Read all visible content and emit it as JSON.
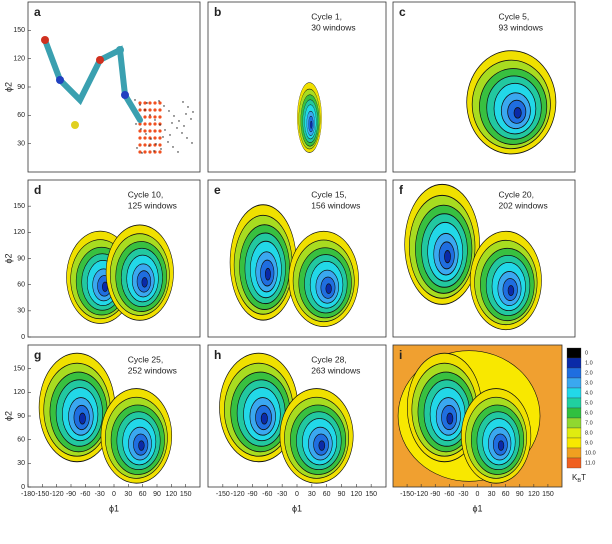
{
  "chart_data": [
    {
      "type": "contour",
      "label": "a",
      "xlim": [
        -180,
        180
      ],
      "ylim": [
        0,
        180
      ],
      "yticks": [
        30,
        60,
        90,
        120,
        150
      ],
      "ylabel": "ϕ2"
    },
    {
      "type": "contour",
      "label": "b",
      "annotation": [
        "Cycle 1,",
        "30 windows"
      ],
      "xlim": [
        -180,
        180
      ],
      "ylim": [
        0,
        180
      ]
    },
    {
      "type": "contour",
      "label": "c",
      "annotation": [
        "Cycle 5,",
        "93 windows"
      ],
      "xlim": [
        -180,
        180
      ],
      "ylim": [
        0,
        180
      ]
    },
    {
      "type": "contour",
      "label": "d",
      "annotation": [
        "Cycle 10,",
        "125 windows"
      ],
      "xlim": [
        -180,
        180
      ],
      "ylim": [
        0,
        180
      ],
      "yticks": [
        0,
        30,
        60,
        90,
        120,
        150
      ],
      "ylabel": "ϕ2"
    },
    {
      "type": "contour",
      "label": "e",
      "annotation": [
        "Cycle 15,",
        "156 windows"
      ],
      "xlim": [
        -180,
        180
      ],
      "ylim": [
        0,
        180
      ]
    },
    {
      "type": "contour",
      "label": "f",
      "annotation": [
        "Cycle 20,",
        "202 windows"
      ],
      "xlim": [
        -180,
        180
      ],
      "ylim": [
        0,
        180
      ]
    },
    {
      "type": "contour",
      "label": "g",
      "annotation": [
        "Cycle 25,",
        "252 windows"
      ],
      "xlim": [
        -180,
        180
      ],
      "ylim": [
        0,
        180
      ],
      "yticks": [
        0,
        30,
        60,
        90,
        120,
        150
      ],
      "ylabel": "ϕ2",
      "xticks": [
        -180,
        -150,
        -120,
        -90,
        -60,
        -30,
        0,
        30,
        60,
        90,
        120,
        150
      ],
      "xlabel": "ϕ1"
    },
    {
      "type": "contour",
      "label": "h",
      "annotation": [
        "Cycle 28,",
        "263 windows"
      ],
      "xlim": [
        -180,
        180
      ],
      "ylim": [
        0,
        180
      ],
      "xticks": [
        -150,
        -120,
        -90,
        -60,
        -30,
        0,
        30,
        60,
        90,
        120,
        150
      ],
      "xlabel": "ϕ1"
    },
    {
      "type": "contour",
      "label": "i",
      "xlim": [
        -180,
        180
      ],
      "ylim": [
        0,
        180
      ],
      "xticks": [
        -150,
        -120,
        -90,
        -60,
        -30,
        0,
        30,
        60,
        90,
        120,
        150
      ],
      "xlabel": "ϕ1",
      "colorbar": {
        "levels": [
          0,
          {
            "value": 1,
            "label": "1.0"
          },
          {
            "value": 2,
            "label": "2.0"
          },
          {
            "value": 3,
            "label": "3.0"
          },
          {
            "value": 4,
            "label": "4.0"
          },
          {
            "value": 5,
            "label": "5.0"
          },
          {
            "value": 6,
            "label": "6.0"
          },
          {
            "value": 7,
            "label": "7.0"
          },
          {
            "value": 8,
            "label": "8.0"
          },
          {
            "value": 9,
            "label": "9.0"
          },
          {
            "value": 10,
            "label": "10.0"
          },
          {
            "value": 11,
            "label": "11.0"
          }
        ],
        "colors": [
          "#000000",
          "#0a2aa8",
          "#1f6ee0",
          "#3aa8f0",
          "#22d8e8",
          "#20d0a0",
          "#30c040",
          "#90d830",
          "#e0ec10",
          "#f8e800",
          "#f0a020",
          "#f06020"
        ],
        "label": [
          "K",
          "B",
          "T"
        ]
      }
    }
  ]
}
